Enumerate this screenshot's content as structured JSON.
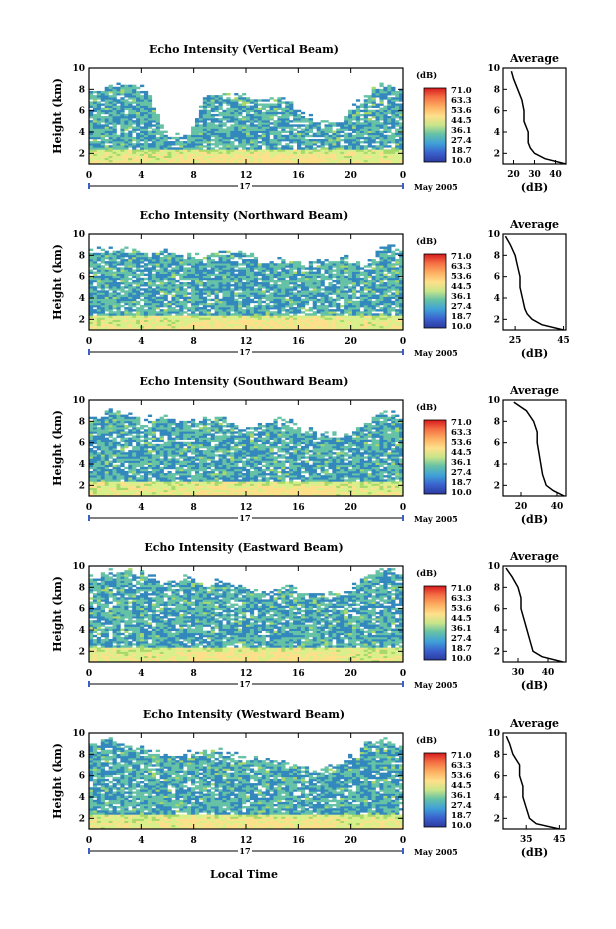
{
  "figure": {
    "date_label": "May 2005",
    "day_label": "17",
    "xlabel": "Local Time",
    "x_ticks": [
      "0",
      "4",
      "8",
      "12",
      "16",
      "20",
      "0"
    ],
    "y_ticks": [
      "2",
      "4",
      "6",
      "8",
      "10"
    ],
    "ylabel": "Height (km)",
    "colorbar": {
      "unit": "(dB)",
      "labels": [
        "71.0",
        "63.3",
        "53.6",
        "44.5",
        "36.1",
        "27.4",
        "18.7",
        "10.0"
      ],
      "colors": [
        "#d7191c",
        "#f46d43",
        "#fdae61",
        "#fee08b",
        "#d9ef8b",
        "#a6d96a",
        "#66c2a5",
        "#3288bd",
        "#3a5fcd",
        "#2b3b9e"
      ]
    },
    "avg_title": "Average",
    "avg_xlabel": "(dB)"
  },
  "chart_data": [
    {
      "type": "heatmap",
      "title": "Echo Intensity (Vertical Beam)",
      "xlabel": "Local Time",
      "ylabel": "Height (km)",
      "xlim": [
        0,
        24
      ],
      "ylim": [
        1,
        10
      ],
      "cbar_range": [
        10.0,
        71.0
      ],
      "cloud_top_km": [
        7.0,
        7.8,
        8.2,
        7.5,
        3.0,
        3.2,
        7.0,
        7.2,
        6.8,
        6.5,
        6.8,
        5.0,
        4.5,
        4.8,
        7.0,
        8.0,
        7.5
      ],
      "average_profile": {
        "title": "Average",
        "xlabel": "(dB)",
        "x_ticks": [
          "20",
          "30",
          "40"
        ],
        "xlim": [
          15,
          45
        ],
        "height_km": [
          1.0,
          1.5,
          2.0,
          2.5,
          3.0,
          3.5,
          4.0,
          5.0,
          6.0,
          7.0,
          8.0,
          9.0,
          9.7
        ],
        "db": [
          45,
          35,
          30,
          28,
          27,
          27,
          27,
          25,
          25,
          24,
          22,
          20,
          19
        ]
      }
    },
    {
      "type": "heatmap",
      "title": "Echo Intensity (Northward Beam)",
      "xlabel": "Local Time",
      "ylabel": "Height (km)",
      "xlim": [
        0,
        24
      ],
      "ylim": [
        1,
        10
      ],
      "cbar_range": [
        10.0,
        71.0
      ],
      "cloud_top_km": [
        8.0,
        8.2,
        8.0,
        7.8,
        8.0,
        7.6,
        7.5,
        8.0,
        7.8,
        7.0,
        7.2,
        6.8,
        7.0,
        7.5,
        6.5,
        8.5,
        8.2
      ],
      "average_profile": {
        "title": "Average",
        "xlabel": "(dB)",
        "x_ticks": [
          "25",
          "45"
        ],
        "xlim": [
          20,
          46
        ],
        "height_km": [
          1.0,
          1.5,
          2.0,
          2.5,
          3.0,
          4.0,
          5.0,
          6.0,
          7.0,
          8.0,
          9.0,
          9.8
        ],
        "db": [
          45,
          36,
          32,
          30,
          29,
          28,
          27,
          27,
          26,
          25,
          23,
          21
        ]
      }
    },
    {
      "type": "heatmap",
      "title": "Echo Intensity (Southward Beam)",
      "xlabel": "Local Time",
      "ylabel": "Height (km)",
      "xlim": [
        0,
        24
      ],
      "ylim": [
        1,
        10
      ],
      "cbar_range": [
        10.0,
        71.0
      ],
      "cloud_top_km": [
        8.0,
        8.5,
        8.2,
        7.8,
        8.0,
        7.5,
        7.6,
        7.8,
        7.0,
        7.5,
        7.6,
        6.8,
        6.5,
        6.0,
        7.5,
        8.5,
        8.0
      ],
      "average_profile": {
        "title": "Average",
        "xlabel": "(dB)",
        "x_ticks": [
          "20",
          "40"
        ],
        "xlim": [
          10,
          45
        ],
        "height_km": [
          1.0,
          1.5,
          2.0,
          3.0,
          4.0,
          5.0,
          6.0,
          7.0,
          8.0,
          9.0,
          9.8
        ],
        "db": [
          44,
          38,
          34,
          32,
          31,
          30,
          29,
          29,
          27,
          23,
          16
        ]
      }
    },
    {
      "type": "heatmap",
      "title": "Echo Intensity (Eastward Beam)",
      "xlabel": "Local Time",
      "ylabel": "Height (km)",
      "xlim": [
        0,
        24
      ],
      "ylim": [
        1,
        10
      ],
      "cbar_range": [
        10.0,
        71.0
      ],
      "cloud_top_km": [
        8.5,
        9.0,
        9.2,
        8.8,
        8.0,
        8.5,
        7.8,
        8.2,
        7.5,
        7.0,
        7.8,
        7.2,
        6.8,
        7.0,
        8.5,
        9.5,
        9.0
      ],
      "average_profile": {
        "title": "Average",
        "xlabel": "(dB)",
        "x_ticks": [
          "30",
          "40"
        ],
        "xlim": [
          25,
          46
        ],
        "height_km": [
          1.0,
          1.5,
          2.0,
          3.0,
          4.0,
          5.0,
          6.0,
          7.0,
          8.0,
          9.0,
          9.8
        ],
        "db": [
          45,
          38,
          35,
          34,
          33,
          32,
          31,
          31,
          30,
          28,
          26
        ]
      }
    },
    {
      "type": "heatmap",
      "title": "Echo Intensity (Westward Beam)",
      "xlabel": "Local Time",
      "ylabel": "Height (km)",
      "xlim": [
        0,
        24
      ],
      "ylim": [
        1,
        10
      ],
      "cbar_range": [
        10.0,
        71.0
      ],
      "cloud_top_km": [
        8.5,
        9.0,
        8.2,
        8.0,
        7.5,
        7.6,
        8.0,
        7.8,
        7.0,
        7.2,
        6.8,
        6.5,
        6.0,
        6.8,
        8.5,
        9.0,
        8.2
      ],
      "average_profile": {
        "title": "Average",
        "xlabel": "(dB)",
        "x_ticks": [
          "35",
          "45"
        ],
        "xlim": [
          28,
          47
        ],
        "height_km": [
          1.0,
          1.5,
          2.0,
          3.0,
          4.0,
          5.0,
          6.0,
          7.0,
          8.0,
          9.0,
          9.7
        ],
        "db": [
          45,
          38,
          36,
          35,
          34,
          34,
          33,
          33,
          31,
          30,
          29
        ]
      }
    }
  ]
}
